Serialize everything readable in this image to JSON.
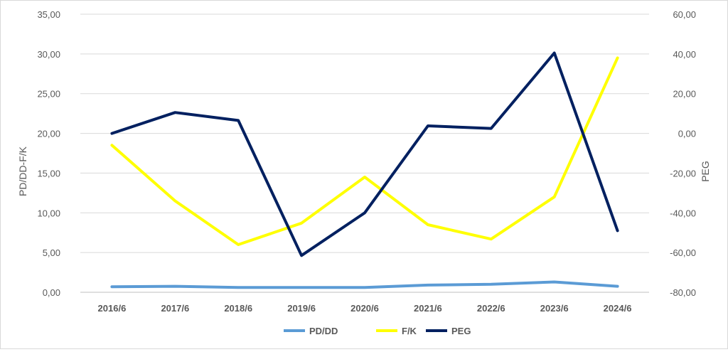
{
  "chart_data": {
    "type": "line",
    "categories": [
      "2016/6",
      "2017/6",
      "2018/6",
      "2019/6",
      "2020/6",
      "2021/6",
      "2022/6",
      "2023/6",
      "2024/6"
    ],
    "series": [
      {
        "name": "PD/DD",
        "axis": "left",
        "color": "#5b9bd5",
        "values": [
          0.7,
          0.75,
          0.6,
          0.6,
          0.6,
          0.9,
          1.0,
          1.3,
          0.75
        ]
      },
      {
        "name": "F/K",
        "axis": "left",
        "color": "#ffff00",
        "values": [
          18.5,
          11.5,
          6.0,
          8.7,
          14.5,
          8.5,
          6.7,
          12.0,
          29.5
        ]
      },
      {
        "name": "PEG",
        "axis": "right",
        "color": "#002060",
        "values": [
          0.0,
          10.5,
          6.5,
          -61.5,
          -40.0,
          3.8,
          2.5,
          40.5,
          -49.0
        ]
      }
    ],
    "ylabel": "PD/DD-F/K",
    "y2label": "PEG",
    "ylim": [
      0,
      35
    ],
    "y2lim": [
      -80,
      60
    ],
    "yticks": [
      "0,00",
      "5,00",
      "10,00",
      "15,00",
      "20,00",
      "25,00",
      "30,00",
      "35,00"
    ],
    "y2ticks": [
      "-80,00",
      "-60,00",
      "-40,00",
      "-20,00",
      "0,00",
      "20,00",
      "40,00",
      "60,00"
    ],
    "grid": true,
    "legend": "bottom"
  }
}
